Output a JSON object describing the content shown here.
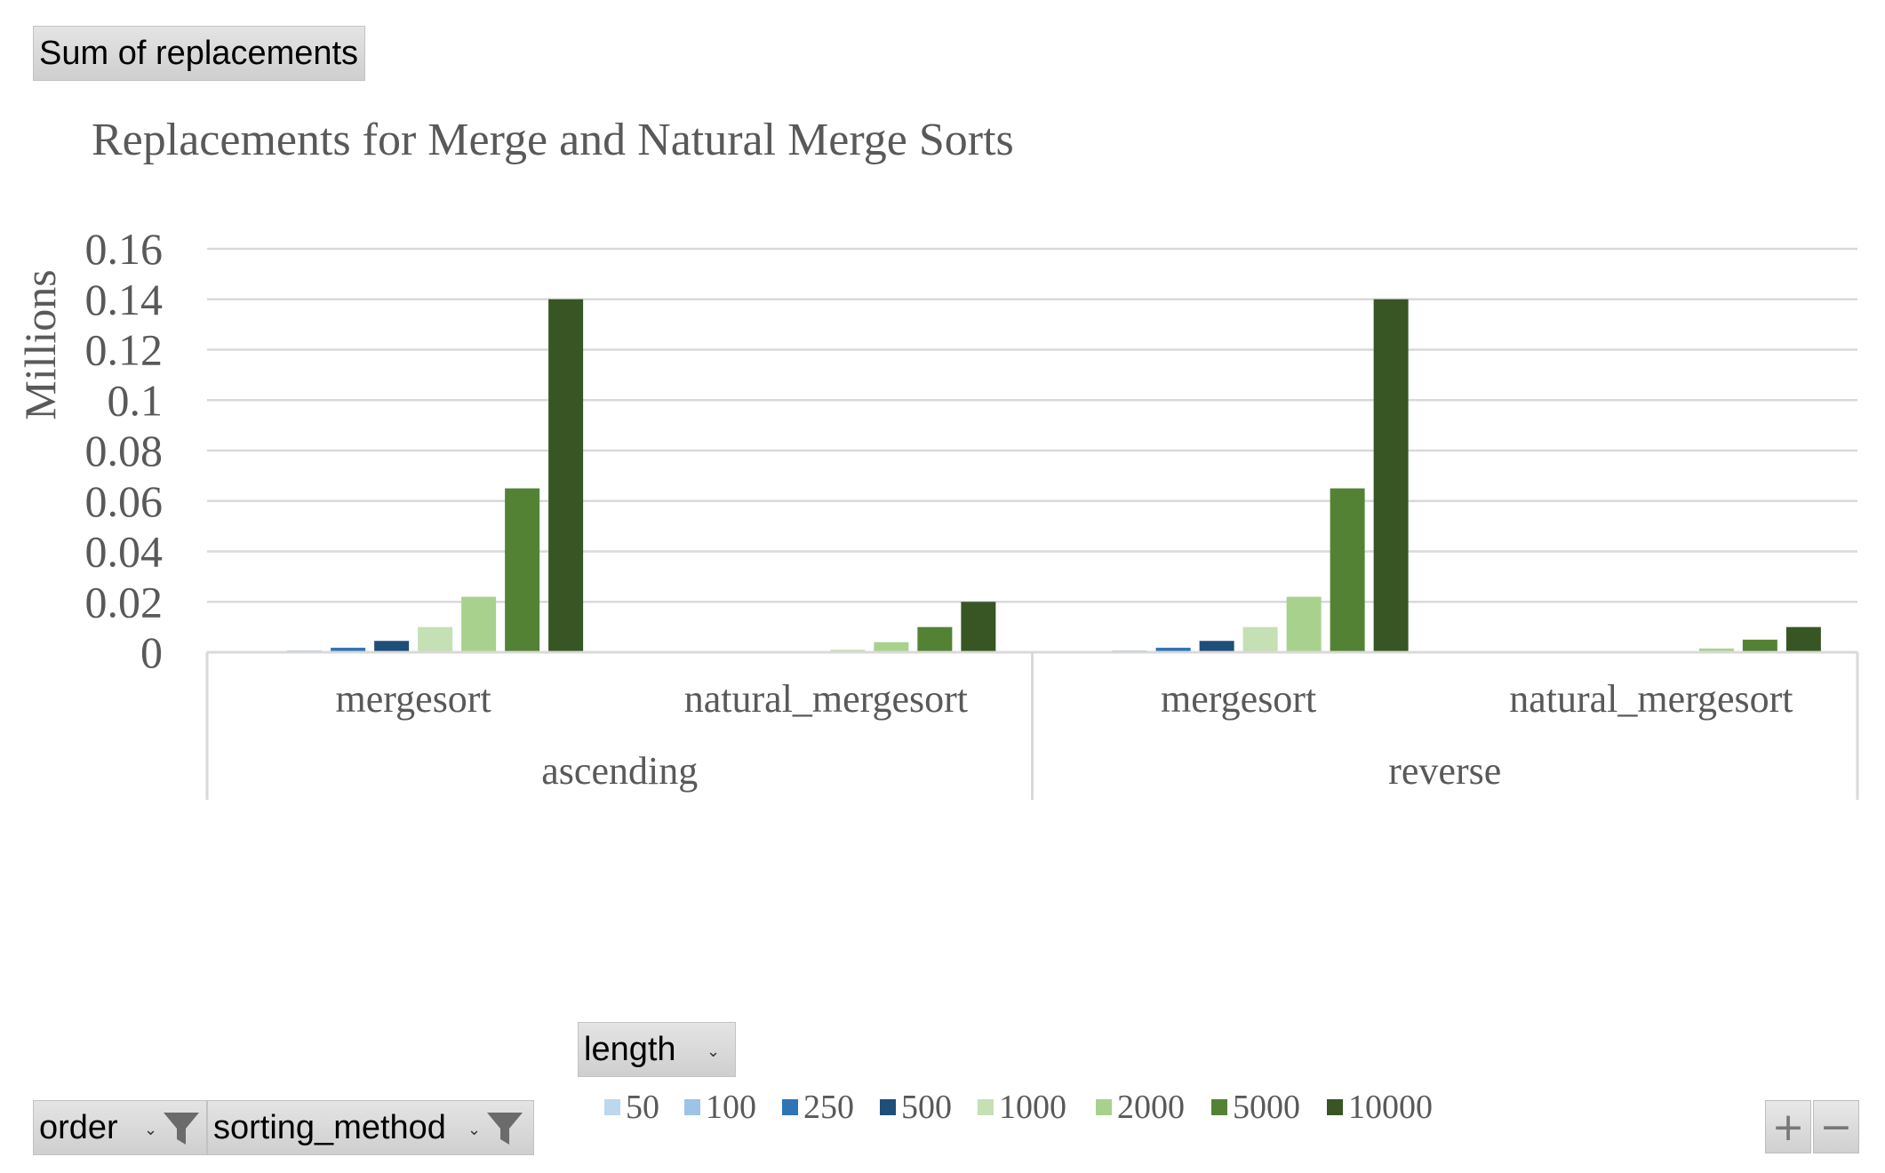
{
  "value_field_button": "Sum of replacements",
  "axis_field_buttons": [
    {
      "label": "order",
      "filter_icon": "funnel-icon",
      "dropdown_icon": "chevron-down-icon"
    },
    {
      "label": "sorting_method",
      "filter_icon": "funnel-icon",
      "dropdown_icon": "chevron-down-icon"
    }
  ],
  "legend_field_button": {
    "label": "length",
    "dropdown_icon": "chevron-down-icon"
  },
  "zoom_buttons": {
    "plus": "+",
    "minus": "−"
  },
  "chart_data": {
    "type": "bar",
    "title": "Replacements for Merge and Natural Merge Sorts",
    "ylabel": "Millions",
    "xlabel": "",
    "ylim": [
      0,
      0.16
    ],
    "yticks": [
      "0",
      "0.02",
      "0.04",
      "0.06",
      "0.08",
      "0.1",
      "0.12",
      "0.14",
      "0.16"
    ],
    "ytick_values": [
      0,
      0.02,
      0.04,
      0.06,
      0.08,
      0.1,
      0.12,
      0.14,
      0.16
    ],
    "grid": true,
    "legend_position": "bottom",
    "outer_categories": [
      "ascending",
      "reverse"
    ],
    "categories": [
      "mergesort",
      "natural_mergesort",
      "mergesort",
      "natural_mergesort"
    ],
    "series": [
      {
        "name": "50",
        "color": "#bdd7ee",
        "values": [
          0.0003,
          0.0,
          0.0003,
          0.0
        ]
      },
      {
        "name": "100",
        "color": "#9dc3e6",
        "values": [
          0.0007,
          0.0,
          0.0007,
          0.0
        ]
      },
      {
        "name": "250",
        "color": "#2e75b6",
        "values": [
          0.0018,
          0.0,
          0.0018,
          0.0
        ]
      },
      {
        "name": "500",
        "color": "#1f4e79",
        "values": [
          0.0045,
          0.0005,
          0.0045,
          0.0
        ]
      },
      {
        "name": "1000",
        "color": "#c5e0b4",
        "values": [
          0.01,
          0.001,
          0.01,
          0.0005
        ]
      },
      {
        "name": "2000",
        "color": "#a9d18e",
        "values": [
          0.022,
          0.004,
          0.022,
          0.0015
        ]
      },
      {
        "name": "5000",
        "color": "#548235",
        "values": [
          0.065,
          0.01,
          0.065,
          0.005
        ]
      },
      {
        "name": "10000",
        "color": "#375623",
        "values": [
          0.14,
          0.02,
          0.14,
          0.01
        ]
      }
    ]
  }
}
